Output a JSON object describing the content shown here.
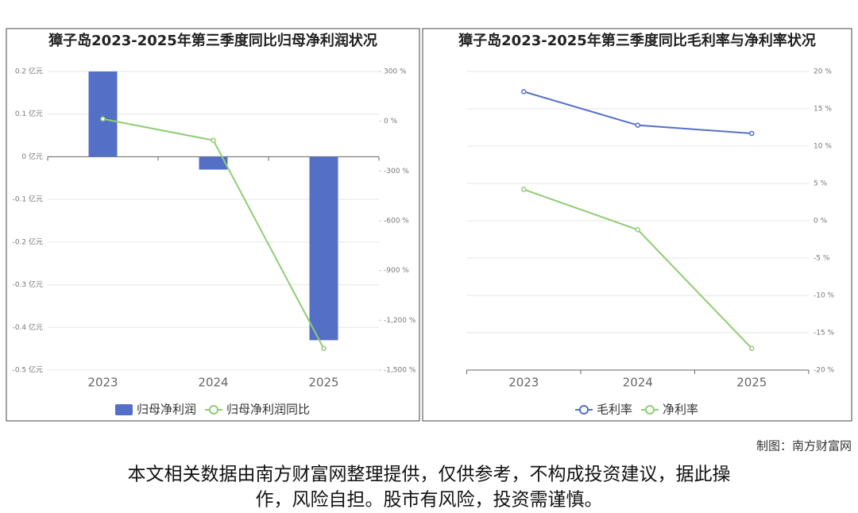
{
  "chart_data": [
    {
      "type": "bar",
      "title": "獐子岛2023-2025年第三季度同比归母净利润状况",
      "categories": [
        "2023",
        "2024",
        "2025"
      ],
      "series": [
        {
          "name": "归母净利润",
          "type": "bar",
          "color": "#5470c6",
          "values": [
            0.2,
            -0.03,
            -0.43
          ]
        },
        {
          "name": "归母净利润同比",
          "type": "line",
          "color": "#91cc75",
          "axis": "y2",
          "values": [
            14,
            -115,
            -1370
          ]
        }
      ],
      "ylim": [
        -0.5,
        0.2
      ],
      "yticks": [
        {
          "value": 0.2,
          "label": "0.2 亿元"
        },
        {
          "value": 0.1,
          "label": "0.1 亿元"
        },
        {
          "value": 0,
          "label": "0 亿元"
        },
        {
          "value": -0.1,
          "label": "-0.1 亿元"
        },
        {
          "value": -0.2,
          "label": "-0.2 亿元"
        },
        {
          "value": -0.3,
          "label": "-0.3 亿元"
        },
        {
          "value": -0.4,
          "label": "-0.4 亿元"
        },
        {
          "value": -0.5,
          "label": "-0.5 亿元"
        }
      ],
      "y2lim": [
        -1500,
        300
      ],
      "y2ticks": [
        {
          "value": 300,
          "label": "300 %"
        },
        {
          "value": 0,
          "label": "0 %"
        },
        {
          "value": -300,
          "label": "-300 %"
        },
        {
          "value": -600,
          "label": "-600 %"
        },
        {
          "value": -900,
          "label": "-900 %"
        },
        {
          "value": -1200,
          "label": "-1,200 %"
        },
        {
          "value": -1500,
          "label": "-1,500 %"
        }
      ],
      "grid": true
    },
    {
      "type": "line",
      "title": "獐子岛2023-2025年第三季度同比毛利率与净利率状况",
      "categories": [
        "2023",
        "2024",
        "2025"
      ],
      "series": [
        {
          "name": "毛利率",
          "type": "line",
          "color": "#5470c6",
          "values": [
            17.3,
            12.8,
            11.7
          ]
        },
        {
          "name": "净利率",
          "type": "line",
          "color": "#91cc75",
          "values": [
            4.2,
            -1.2,
            -17.1
          ]
        }
      ],
      "ylim": [
        -20,
        20
      ],
      "yaxis_side": "right",
      "yticks": [
        {
          "value": 20,
          "label": "20 %"
        },
        {
          "value": 15,
          "label": "15 %"
        },
        {
          "value": 10,
          "label": "10 %"
        },
        {
          "value": 5,
          "label": "5 %"
        },
        {
          "value": 0,
          "label": "0 %"
        },
        {
          "value": -5,
          "label": "-5 %"
        },
        {
          "value": -10,
          "label": "-10 %"
        },
        {
          "value": -15,
          "label": "-15 %"
        },
        {
          "value": -20,
          "label": "-20 %"
        }
      ],
      "grid": true
    }
  ],
  "credit": "制图：南方财富网",
  "disclaimer": [
    "本文相关数据由南方财富网整理提供，仅供参考，不构成投资建议，据此操",
    "作，风险自担。股市有风险，投资需谨慎。"
  ]
}
